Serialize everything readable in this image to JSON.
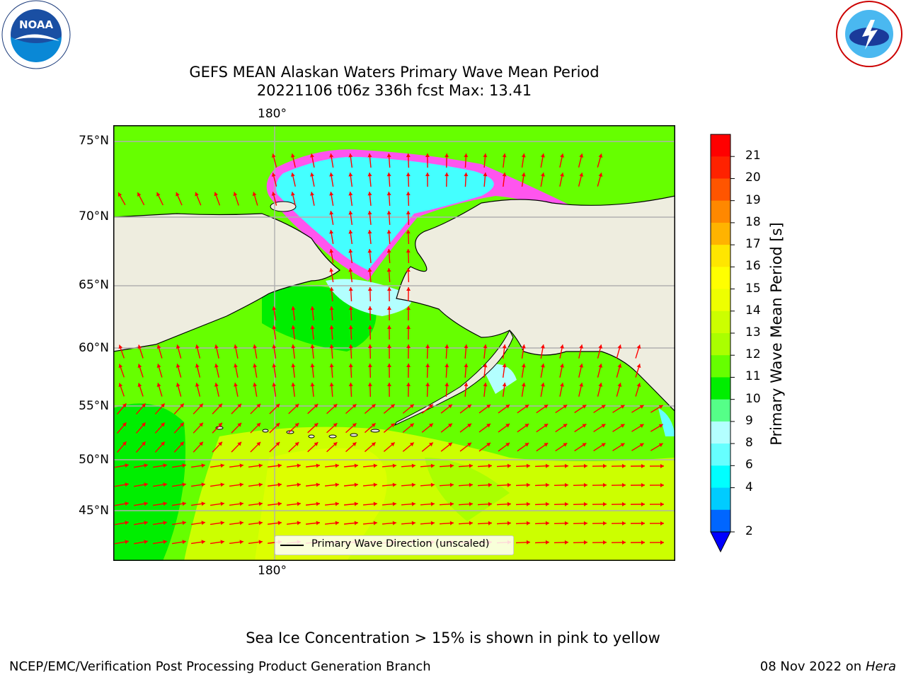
{
  "title": {
    "line1": "GEFS MEAN Alaskan Waters Primary Wave Mean Period",
    "line2": "20221106 t06z 336h fcst   Max: 13.41"
  },
  "map": {
    "lon_label_top": "180°",
    "lon_label_bottom": "180°",
    "lat_labels": [
      "75°N",
      "70°N",
      "65°N",
      "60°N",
      "55°N",
      "50°N",
      "45°N"
    ],
    "land_color": "#eeeddf",
    "arrow_color": "#ff0000",
    "legend_text": "Primary Wave Direction (unscaled)"
  },
  "colorbar": {
    "label": "Primary Wave Mean Period [s]",
    "ticks": [
      "2",
      "4",
      "6",
      "8",
      "9",
      "10",
      "11",
      "12",
      "13",
      "14",
      "15",
      "16",
      "17",
      "18",
      "19",
      "20",
      "21"
    ],
    "colors": [
      "#0066ff",
      "#00ccff",
      "#00ffff",
      "#66ffff",
      "#b3ffff",
      "#55ff88",
      "#00ee00",
      "#66ff00",
      "#aaff00",
      "#ccff00",
      "#eeff00",
      "#ffff00",
      "#ffe600",
      "#ffb300",
      "#ff8800",
      "#ff5500",
      "#ff2200",
      "#ff0000"
    ],
    "extend_color": "#0000ff"
  },
  "note": "Sea Ice Concentration > 15% is shown in pink to yellow",
  "footer": {
    "left": "NCEP/EMC/Verification Post Processing Product Generation Branch",
    "date": "08 Nov 2022 on",
    "machine": "Hera"
  },
  "logos": {
    "noaa": "NOAA",
    "nws": "NATIONAL WEATHER SERVICE"
  }
}
